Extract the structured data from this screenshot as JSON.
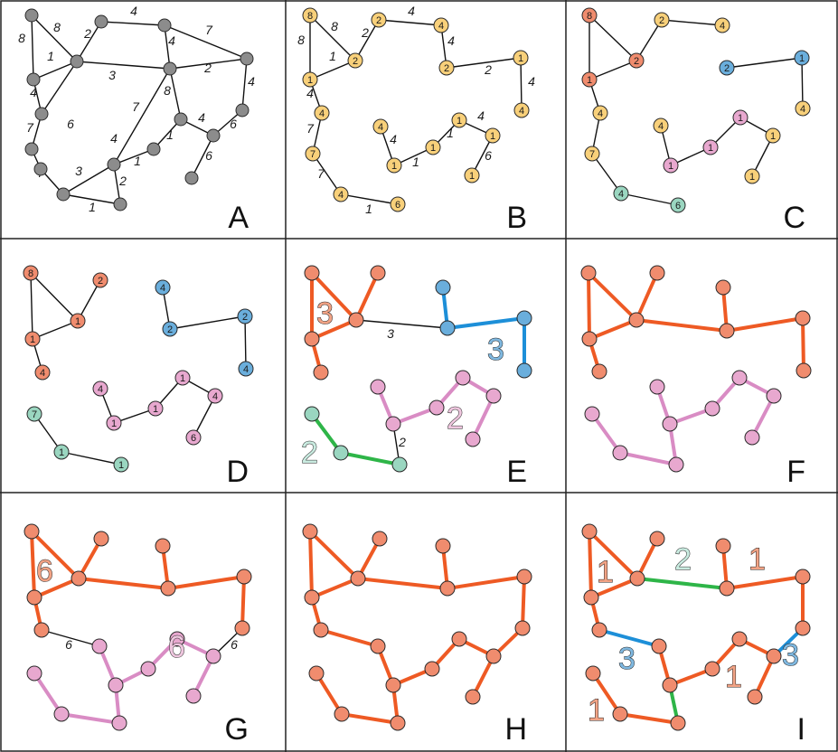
{
  "colors": {
    "gray": "#8c8c8c",
    "yellow": "#f8d07a",
    "red": "#f08c6e",
    "blue": "#6aaedc",
    "teal": "#9ad6c0",
    "pink": "#e8a8cf",
    "orange_edge": "#ee5a24",
    "blue_edge": "#1d8fd8",
    "green_edge": "#2eb548",
    "pink_edge": "#d98cc4",
    "black_edge": "#111111",
    "big_red": "#f2a385",
    "big_blue": "#7fb8e0",
    "big_teal": "#c9ebe0",
    "big_pink": "#efc7df"
  },
  "panels": [
    {
      "label": "A",
      "nodes": [
        {
          "l": ""
        },
        {
          "l": ""
        },
        {
          "l": ""
        },
        {
          "l": ""
        },
        {
          "l": ""
        },
        {
          "l": ""
        },
        {
          "l": ""
        },
        {
          "l": ""
        },
        {
          "l": ""
        },
        {
          "l": ""
        },
        {
          "l": ""
        },
        {
          "l": ""
        },
        {
          "l": ""
        },
        {
          "l": ""
        },
        {
          "l": ""
        },
        {
          "l": ""
        },
        {
          "l": ""
        },
        {
          "l": ""
        },
        {
          "l": ""
        }
      ],
      "edges": [
        {
          "w": "8"
        },
        {
          "w": "8"
        },
        {
          "w": "1"
        },
        {
          "w": "2"
        },
        {
          "w": "4"
        },
        {
          "w": "4"
        },
        {
          "w": "7"
        },
        {
          "w": "3"
        },
        {
          "w": "2"
        },
        {
          "w": "4"
        },
        {
          "w": "7"
        },
        {
          "w": "6"
        },
        {
          "w": "8"
        },
        {
          "w": "4"
        },
        {
          "w": "4"
        },
        {
          "w": "6"
        },
        {
          "w": "4"
        },
        {
          "w": "1"
        },
        {
          "w": "1"
        },
        {
          "w": "7"
        },
        {
          "w": "7"
        },
        {
          "w": "3"
        },
        {
          "w": "2"
        },
        {
          "w": "1"
        },
        {
          "w": "6"
        }
      ],
      "bigs": []
    },
    {
      "label": "B",
      "nodes": [
        {
          "l": "8"
        },
        {
          "l": "2"
        },
        {
          "l": "4"
        },
        {
          "l": "1"
        },
        {
          "l": "1"
        },
        {
          "l": "2"
        },
        {
          "l": "2"
        },
        {
          "l": "4"
        },
        {
          "l": "4"
        },
        {
          "l": "7"
        },
        {
          "l": "1"
        },
        {
          "l": "1"
        },
        {
          "l": "4"
        },
        {
          "l": "1"
        },
        {
          "l": "1"
        },
        {
          "l": "1"
        },
        {
          "l": "4"
        },
        {
          "l": "6"
        }
      ],
      "edges": [
        {
          "w": "8"
        },
        {
          "w": "8"
        },
        {
          "w": "1"
        },
        {
          "w": "2"
        },
        {
          "w": "4"
        },
        {
          "w": "4"
        },
        {
          "w": "2"
        },
        {
          "w": "4"
        },
        {
          "w": "4"
        },
        {
          "w": "7"
        },
        {
          "w": "7"
        },
        {
          "w": "1"
        },
        {
          "w": "4"
        },
        {
          "w": "1"
        },
        {
          "w": "1"
        },
        {
          "w": "4"
        },
        {
          "w": "6"
        }
      ],
      "bigs": []
    },
    {
      "label": "C",
      "nodes": [
        {
          "l": "8"
        },
        {
          "l": "2"
        },
        {
          "l": "4"
        },
        {
          "l": "1"
        },
        {
          "l": "1"
        },
        {
          "l": "2"
        },
        {
          "l": "2"
        },
        {
          "l": "4"
        },
        {
          "l": "4"
        },
        {
          "l": "7"
        },
        {
          "l": "1"
        },
        {
          "l": "1"
        },
        {
          "l": "4"
        },
        {
          "l": "1"
        },
        {
          "l": "1"
        },
        {
          "l": "1"
        },
        {
          "l": "4"
        },
        {
          "l": "6"
        }
      ],
      "edges": [],
      "bigs": []
    },
    {
      "label": "D",
      "nodes": [
        {
          "l": "8"
        },
        {
          "l": "2"
        },
        {
          "l": "1"
        },
        {
          "l": "1"
        },
        {
          "l": "4"
        },
        {
          "l": "4"
        },
        {
          "l": "2"
        },
        {
          "l": "2"
        },
        {
          "l": "4"
        },
        {
          "l": "7"
        },
        {
          "l": "1"
        },
        {
          "l": "1"
        },
        {
          "l": "4"
        },
        {
          "l": "1"
        },
        {
          "l": "1"
        },
        {
          "l": "1"
        },
        {
          "l": "4"
        },
        {
          "l": "6"
        }
      ],
      "edges": [],
      "bigs": []
    },
    {
      "label": "E",
      "nodes": [],
      "edges": [
        {
          "w": "3"
        },
        {
          "w": "2"
        }
      ],
      "bigs": [
        {
          "t": "3"
        },
        {
          "t": "3"
        },
        {
          "t": "2"
        },
        {
          "t": "2"
        }
      ]
    },
    {
      "label": "F",
      "nodes": [],
      "edges": [],
      "bigs": []
    },
    {
      "label": "G",
      "nodes": [],
      "edges": [
        {
          "w": "6"
        },
        {
          "w": "6"
        }
      ],
      "bigs": [
        {
          "t": "6"
        },
        {
          "t": "6"
        }
      ]
    },
    {
      "label": "H",
      "nodes": [],
      "edges": [],
      "bigs": []
    },
    {
      "label": "I",
      "nodes": [],
      "edges": [],
      "bigs": [
        {
          "t": "1"
        },
        {
          "t": "2"
        },
        {
          "t": "1"
        },
        {
          "t": "3"
        },
        {
          "t": "3"
        },
        {
          "t": "1"
        },
        {
          "t": "1"
        }
      ]
    }
  ]
}
